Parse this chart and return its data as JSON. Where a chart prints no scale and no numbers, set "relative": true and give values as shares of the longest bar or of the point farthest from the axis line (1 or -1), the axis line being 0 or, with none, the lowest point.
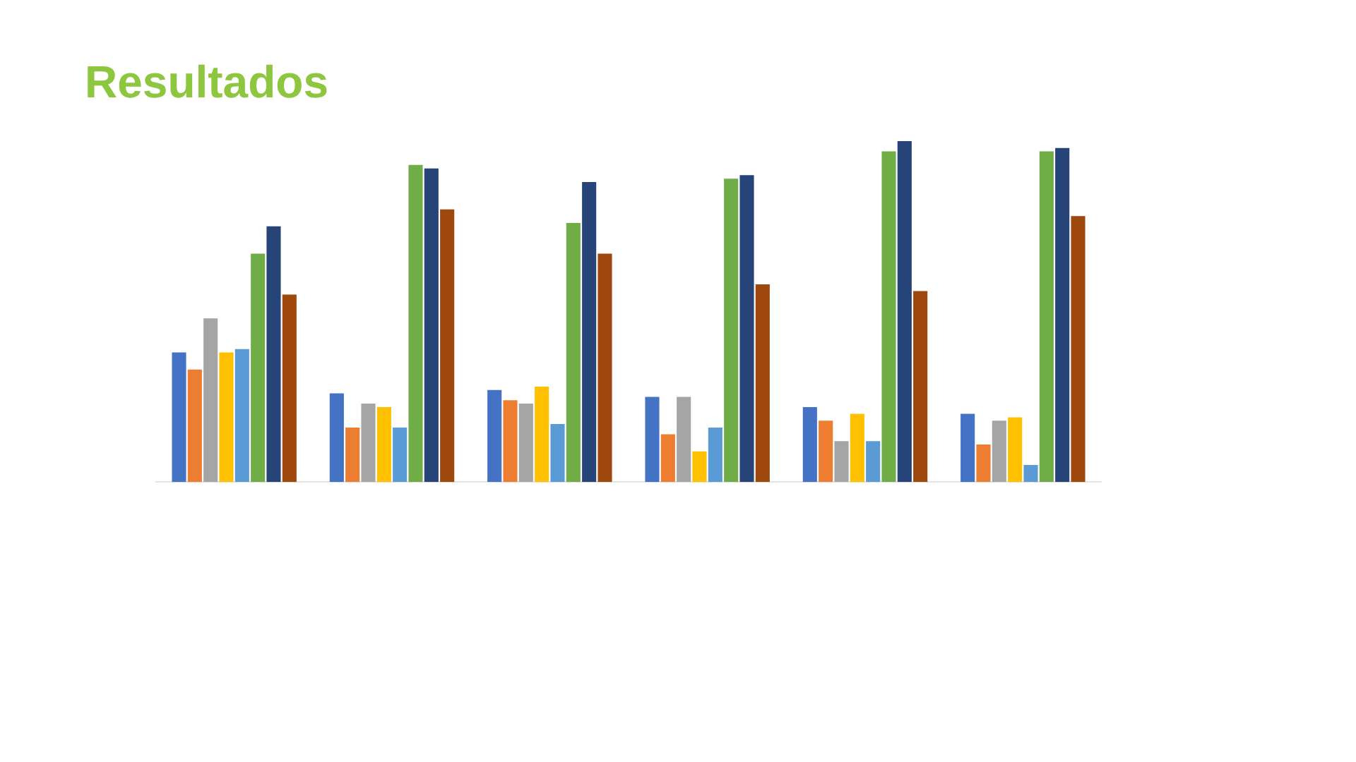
{
  "chart_data": {
    "type": "bar",
    "title": "Resultados",
    "relative": true,
    "categories": [
      null,
      null,
      null,
      null,
      null,
      null
    ],
    "series": [
      {
        "color": "#4472c4",
        "values": [
          0.38,
          0.26,
          0.27,
          0.25,
          0.22,
          0.2
        ]
      },
      {
        "color": "#ed7d31",
        "values": [
          0.33,
          0.16,
          0.24,
          0.14,
          0.18,
          0.11
        ]
      },
      {
        "color": "#a5a5a5",
        "values": [
          0.48,
          0.23,
          0.23,
          0.25,
          0.12,
          0.18
        ]
      },
      {
        "color": "#ffc000",
        "values": [
          0.38,
          0.22,
          0.28,
          0.09,
          0.2,
          0.19
        ]
      },
      {
        "color": "#5b9bd5",
        "values": [
          0.39,
          0.16,
          0.17,
          0.16,
          0.12,
          0.05
        ]
      },
      {
        "color": "#70ad47",
        "values": [
          0.67,
          0.93,
          0.76,
          0.89,
          0.97,
          0.97
        ]
      },
      {
        "color": "#264478",
        "values": [
          0.75,
          0.92,
          0.88,
          0.9,
          1,
          0.98
        ]
      },
      {
        "color": "#9e480e",
        "values": [
          0.55,
          0.8,
          0.67,
          0.58,
          0.56,
          0.78
        ]
      }
    ]
  }
}
